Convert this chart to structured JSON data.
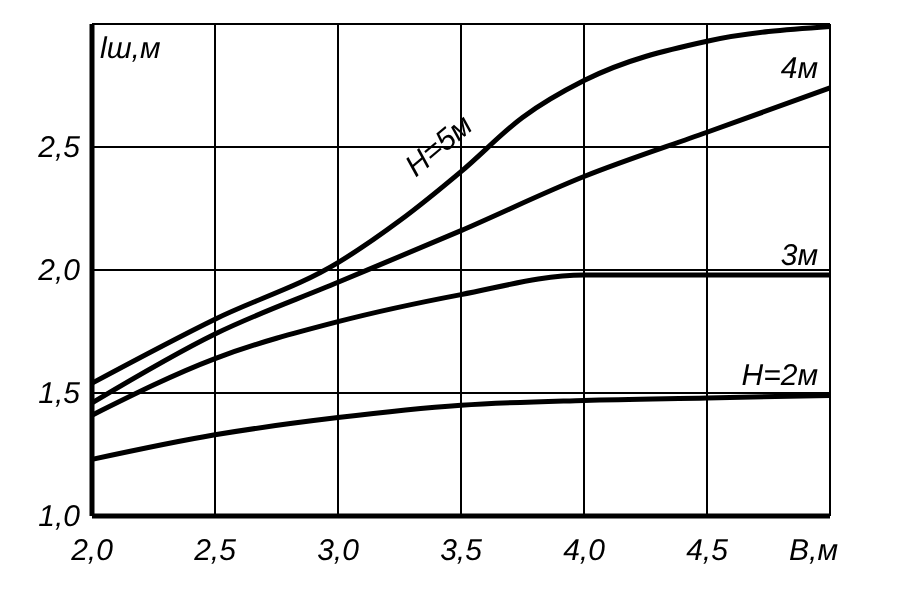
{
  "chart_data": {
    "type": "line",
    "ylabel": "lш,м",
    "xlabel": "B,м",
    "xlim": [
      2,
      5
    ],
    "ylim": [
      1,
      3
    ],
    "xticks": [
      {
        "value": 2,
        "label": "2,0"
      },
      {
        "value": 2.5,
        "label": "2,5"
      },
      {
        "value": 3,
        "label": "3,0"
      },
      {
        "value": 3.5,
        "label": "3,5"
      },
      {
        "value": 4,
        "label": "4,0"
      },
      {
        "value": 4.5,
        "label": "4,5"
      },
      {
        "value": 5,
        "label": null
      }
    ],
    "yticks": [
      {
        "value": 1,
        "label": "1,0"
      },
      {
        "value": 1.5,
        "label": "1,5"
      },
      {
        "value": 2,
        "label": "2,0"
      },
      {
        "value": 2.5,
        "label": "2,5"
      },
      {
        "value": 3,
        "label": null
      }
    ],
    "grid": true,
    "line_style": "solid",
    "series": [
      {
        "name": "H=5м",
        "color": "#000000",
        "x": [
          2,
          2.5,
          3,
          3.25,
          3.5,
          3.75,
          4,
          4.5,
          5
        ],
        "values": [
          1.54,
          1.8,
          2.03,
          2.2,
          2.4,
          2.62,
          2.77,
          2.93,
          2.99
        ]
      },
      {
        "name": "4м",
        "color": "#000000",
        "x": [
          2,
          2.5,
          3,
          3.5,
          4,
          4.5,
          5
        ],
        "values": [
          1.46,
          1.74,
          1.95,
          2.16,
          2.38,
          2.56,
          2.74
        ]
      },
      {
        "name": "3м",
        "color": "#000000",
        "x": [
          2,
          2.5,
          3,
          3.5,
          4,
          4.5,
          5
        ],
        "values": [
          1.41,
          1.64,
          1.79,
          1.9,
          1.98,
          1.98,
          1.98
        ]
      },
      {
        "name": "H=2м",
        "color": "#000000",
        "x": [
          2,
          2.5,
          3,
          3.5,
          4,
          4.5,
          5
        ],
        "values": [
          1.23,
          1.33,
          1.4,
          1.45,
          1.47,
          1.48,
          1.49
        ]
      }
    ]
  }
}
